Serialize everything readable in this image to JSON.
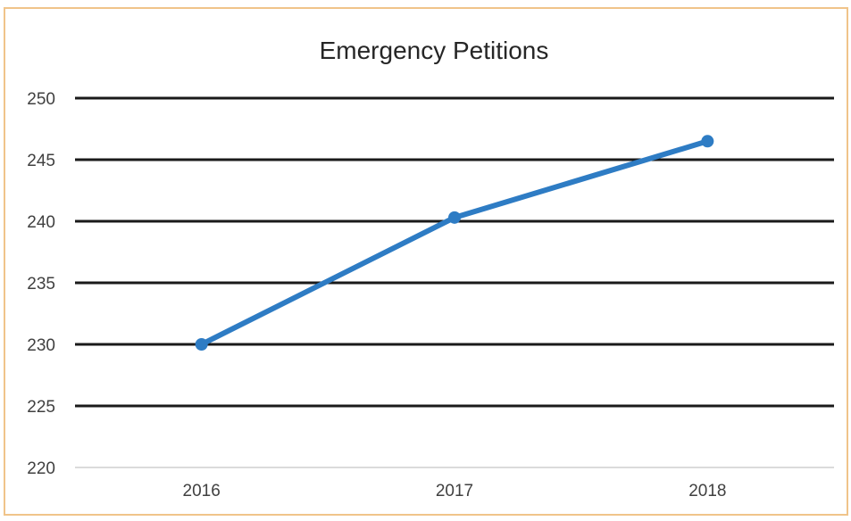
{
  "chart_data": {
    "type": "line",
    "title": "Emergency Petitions",
    "xlabel": "",
    "ylabel": "",
    "categories": [
      "2016",
      "2017",
      "2018"
    ],
    "series": [
      {
        "values": [
          230,
          240.3,
          246.5
        ],
        "color": "#2e7cc4"
      }
    ],
    "ylim": [
      220,
      250
    ],
    "yticks": [
      "220",
      "225",
      "230",
      "235",
      "240",
      "245",
      "250"
    ],
    "grid": true,
    "legend": "none",
    "colors": {
      "line": "#2e7cc4",
      "grid": "#1a1a1a",
      "border": "#f0c48a"
    }
  }
}
